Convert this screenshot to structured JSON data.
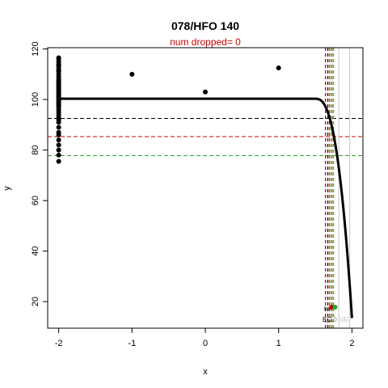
{
  "chart_data": {
    "type": "scatter",
    "title": "078/HFO 140",
    "subtitle": "num dropped= 0",
    "xlabel": "x",
    "ylabel": "y",
    "xlim": [
      -2.15,
      2.15
    ],
    "ylim": [
      9.5,
      120.5
    ],
    "xticks": [
      -2,
      -1,
      0,
      1,
      2
    ],
    "yticks": [
      20,
      40,
      60,
      80,
      100,
      120
    ],
    "grid": false,
    "points": {
      "x": [
        -2,
        -2,
        -2,
        -2,
        -2,
        -2,
        -2,
        -2,
        -2,
        -2,
        -2,
        -2,
        -2,
        -2,
        -2,
        -2,
        -2,
        -2,
        -2,
        -2,
        -2,
        -2,
        -2,
        -2,
        -2,
        -2,
        -2,
        -2,
        -2,
        -2,
        -2,
        -2,
        -2,
        -2,
        -2,
        -2,
        -2,
        -2,
        -2,
        -2,
        -2,
        -2,
        -2,
        -2,
        -2,
        -2,
        -2,
        -2,
        -1,
        0,
        1
      ],
      "y": [
        116,
        115,
        114,
        113,
        112,
        111,
        110,
        109,
        108,
        107.5,
        107,
        106.5,
        106,
        105.5,
        105,
        104.5,
        104,
        103.5,
        103,
        102.5,
        102,
        101.5,
        101,
        100.5,
        100,
        99.5,
        99,
        98.5,
        98,
        97.5,
        97,
        96,
        95,
        94,
        93,
        92,
        91,
        89,
        87,
        86,
        84,
        82,
        80,
        78,
        75.5,
        116.5,
        113.5,
        111.5,
        110,
        103,
        112.5
      ]
    },
    "fit_curve": {
      "plateau": 100.3,
      "x0": 1.5,
      "x1": 2.0,
      "y_end": 13.5
    },
    "hlines": [
      {
        "y": 92.5,
        "color": "#000000"
      },
      {
        "y": 85.3,
        "color": "#cc0000"
      },
      {
        "y": 77.8,
        "color": "#22aa22"
      }
    ],
    "vlines": [
      {
        "x": 1.64,
        "color": "#000000"
      },
      {
        "x": 1.67,
        "color": "#000000"
      },
      {
        "x": 1.69,
        "color": "#cc0000"
      },
      {
        "x": 1.73,
        "color": "#cc0000"
      },
      {
        "x": 1.71,
        "color": "#22aa22"
      },
      {
        "x": 1.75,
        "color": "#22aa22"
      },
      {
        "x": 1.82,
        "color": "#c8c8c8"
      },
      {
        "x": 1.97,
        "color": "#c8c8c8"
      }
    ],
    "annotations": [
      {
        "text": "se",
        "x": 1.66,
        "y": 17.5,
        "color": "#000000"
      },
      {
        "text": "EC",
        "x": 1.66,
        "y": 13.0,
        "color": "#000000"
      },
      {
        "text": "10",
        "x": 1.745,
        "y": 13.0,
        "color": "#888888"
      },
      {
        "text": "50",
        "x": 1.86,
        "y": 13.0,
        "color": "#cccccc"
      },
      {
        "text": "50",
        "x": 1.93,
        "y": 13.0,
        "color": "#cccccc"
      }
    ],
    "markers": [
      {
        "x": 1.725,
        "y": 17.8,
        "color": "#cc0000"
      },
      {
        "x": 1.77,
        "y": 17.8,
        "color": "#22aa22"
      }
    ]
  }
}
